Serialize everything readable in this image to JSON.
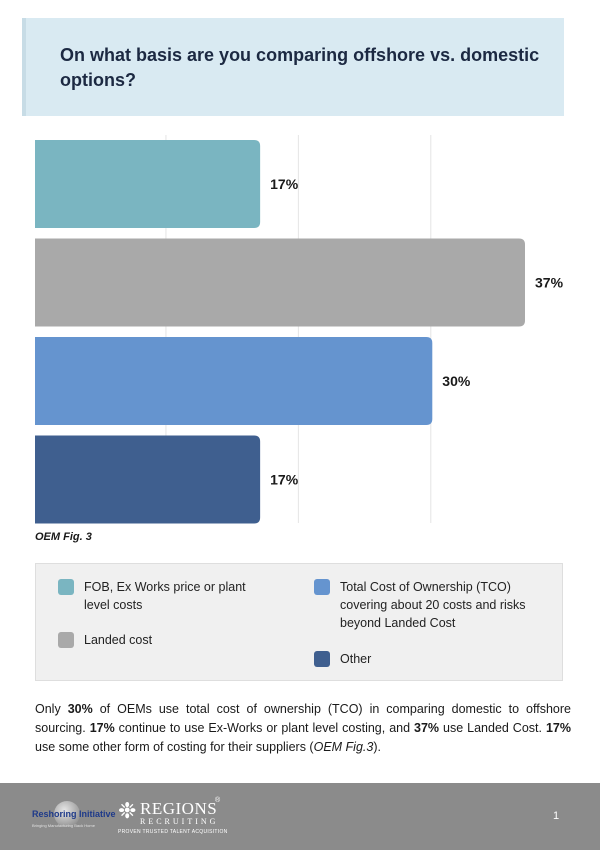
{
  "title": "On what basis are you comparing offshore vs. domestic options?",
  "chart_data": {
    "type": "bar",
    "orientation": "horizontal",
    "categories": [
      "FOB, Ex Works price or plant level costs",
      "Landed cost",
      "Total Cost of Ownership (TCO) covering about 20 costs and risks beyond Landed Cost",
      "Other"
    ],
    "values": [
      17,
      37,
      30,
      17
    ],
    "value_labels": [
      "17%",
      "37%",
      "30%",
      "17%"
    ],
    "colors": [
      "#7ab5c1",
      "#a9a9a9",
      "#6594cf",
      "#3f5f8f"
    ],
    "xlim": [
      0,
      40
    ],
    "gridlines": [
      10,
      20,
      30
    ],
    "unit": "%",
    "title": "",
    "xlabel": "",
    "ylabel": ""
  },
  "figure_label": "OEM Fig. 3",
  "legend": {
    "items": [
      {
        "label": "FOB, Ex Works price or plant level costs",
        "color": "#7ab5c1"
      },
      {
        "label": "Landed cost",
        "color": "#a9a9a9"
      },
      {
        "label": "Total Cost of Ownership (TCO) covering about 20 costs and risks beyond Landed Cost",
        "color": "#6594cf"
      },
      {
        "label": "Other",
        "color": "#3f5f8f"
      }
    ]
  },
  "body": {
    "p1": "Only ",
    "b1": "30%",
    "p2": " of OEMs use total cost of ownership (TCO) in comparing domestic to offshore sourcing. ",
    "b2": "17%",
    "p3": " continue to use Ex-Works or plant level costing, and ",
    "b3": "37%",
    "p4": " use Landed Cost. ",
    "b4": "17%",
    "p5": " use some other form of costing for their suppliers (",
    "i1": "OEM Fig.3",
    "p6": ")."
  },
  "footer": {
    "logo1_reshoring": "Reshoring Initiative",
    "logo1_tagline": "Bringing Manufacturing Back Home",
    "logo2_name": "REGIONS",
    "logo2_reg": "®",
    "logo2_sub": "RECRUITING",
    "logo2_tagline": "PROVEN TRUSTED TALENT ACQUISITION",
    "page_number": "1"
  }
}
